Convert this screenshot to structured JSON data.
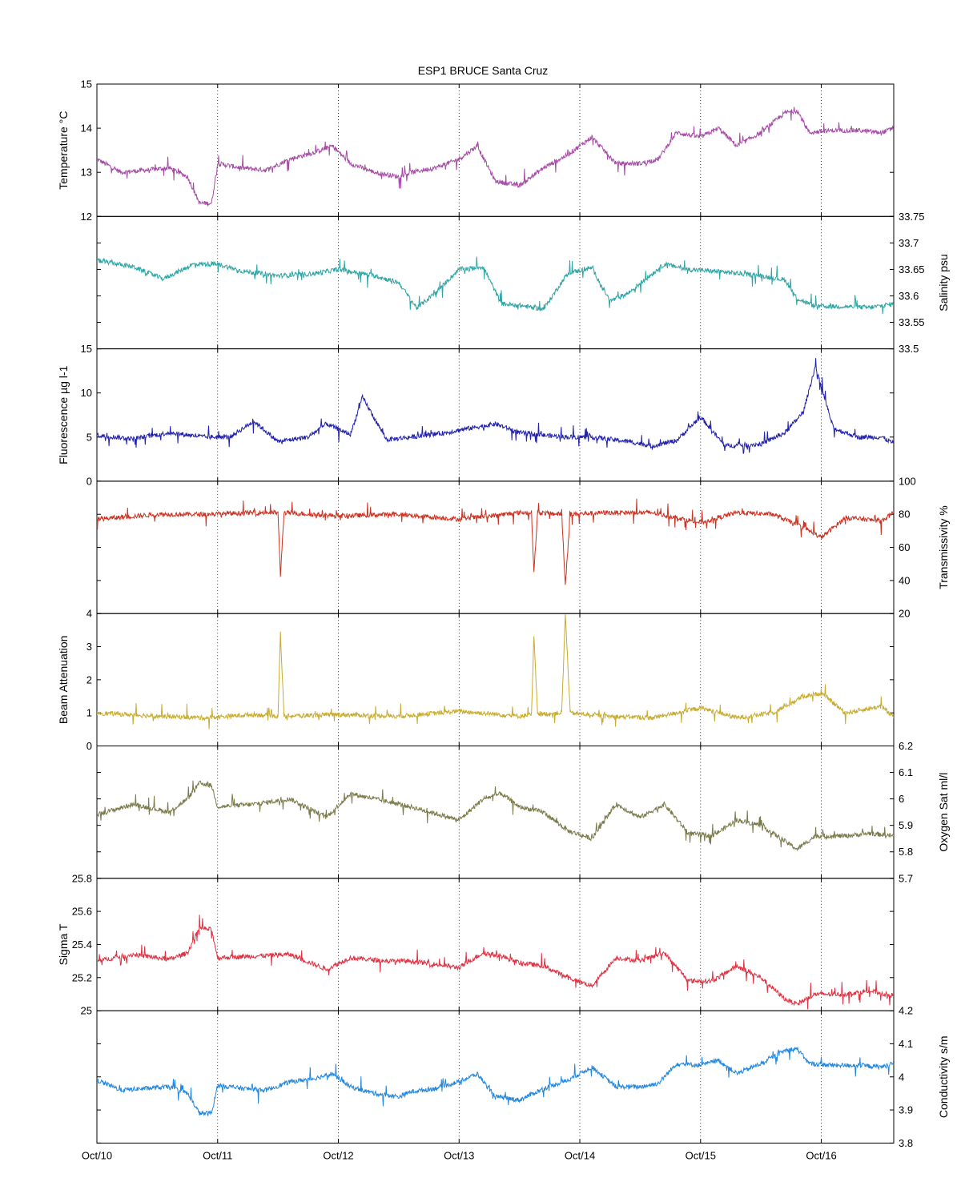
{
  "chart_data": {
    "type": "line",
    "title": "ESP1 BRUCE Santa Cruz",
    "x_ticks": [
      "Oct/10",
      "Oct/11",
      "Oct/12",
      "Oct/13",
      "Oct/14",
      "Oct/15",
      "Oct/16"
    ],
    "x_range_days": [
      10,
      16.6
    ],
    "grid": "vertical dotted lines at day ticks",
    "panels": [
      {
        "id": "temperature",
        "ylabel": "Temperature °C",
        "axis_side": "left",
        "ylim": [
          12,
          15
        ],
        "ticks": [
          12,
          13,
          14,
          15
        ],
        "tick_labels": [
          "12",
          "13",
          "14",
          "15"
        ],
        "color": "#a64ca6",
        "series": {
          "name": "Temperature",
          "x": [
            10.0,
            10.2,
            10.4,
            10.6,
            10.75,
            10.85,
            10.95,
            11.0,
            11.2,
            11.4,
            11.6,
            11.8,
            11.95,
            12.1,
            12.3,
            12.5,
            12.6,
            12.8,
            13.0,
            13.15,
            13.3,
            13.5,
            13.7,
            13.9,
            14.1,
            14.3,
            14.5,
            14.65,
            14.8,
            15.0,
            15.15,
            15.3,
            15.5,
            15.7,
            15.8,
            15.9,
            16.1,
            16.3,
            16.5,
            16.6
          ],
          "y": [
            13.3,
            13.0,
            13.05,
            13.1,
            12.9,
            12.3,
            12.3,
            13.2,
            13.1,
            13.05,
            13.3,
            13.45,
            13.6,
            13.2,
            13.0,
            12.9,
            13.0,
            13.1,
            13.3,
            13.6,
            12.8,
            12.7,
            13.1,
            13.4,
            13.8,
            13.2,
            13.2,
            13.3,
            13.9,
            13.8,
            14.0,
            13.6,
            13.9,
            14.35,
            14.4,
            13.9,
            13.95,
            13.95,
            13.9,
            14.0
          ]
        }
      },
      {
        "id": "salinity",
        "ylabel": "Salinity psu",
        "axis_side": "right",
        "ylim": [
          33.5,
          33.75
        ],
        "ticks": [
          33.5,
          33.55,
          33.6,
          33.65,
          33.7,
          33.75
        ],
        "tick_labels": [
          "33.5",
          "33.55",
          "33.6",
          "33.65",
          "33.7",
          "33.75"
        ],
        "color": "#2fa5a5",
        "series": {
          "name": "Salinity",
          "x": [
            10.0,
            10.3,
            10.55,
            10.8,
            11.0,
            11.2,
            11.5,
            11.8,
            12.0,
            12.3,
            12.5,
            12.65,
            12.8,
            13.0,
            13.2,
            13.35,
            13.5,
            13.7,
            13.9,
            14.1,
            14.25,
            14.4,
            14.7,
            14.9,
            15.2,
            15.5,
            15.7,
            15.8,
            15.95,
            16.2,
            16.4,
            16.6
          ],
          "y": [
            33.667,
            33.655,
            33.632,
            33.66,
            33.66,
            33.647,
            33.638,
            33.642,
            33.65,
            33.638,
            33.625,
            33.577,
            33.605,
            33.65,
            33.655,
            33.585,
            33.582,
            33.575,
            33.643,
            33.653,
            33.59,
            33.605,
            33.66,
            33.65,
            33.645,
            33.638,
            33.63,
            33.595,
            33.58,
            33.58,
            33.578,
            33.585
          ]
        }
      },
      {
        "id": "fluorescence",
        "ylabel": "Fluorescence µg l-1",
        "axis_side": "left",
        "ylim": [
          0,
          15
        ],
        "ticks": [
          0,
          5,
          10,
          15
        ],
        "tick_labels": [
          "0",
          "5",
          "10",
          "15"
        ],
        "color": "#2222aa",
        "series": {
          "name": "Fluorescence",
          "x": [
            10.0,
            10.3,
            10.6,
            10.9,
            11.1,
            11.3,
            11.5,
            11.75,
            11.9,
            12.1,
            12.2,
            12.4,
            12.6,
            12.9,
            13.0,
            13.3,
            13.5,
            13.7,
            13.9,
            14.1,
            14.4,
            14.6,
            14.8,
            15.0,
            15.2,
            15.5,
            15.7,
            15.85,
            15.95,
            16.1,
            16.3,
            16.5,
            16.6
          ],
          "y": [
            5.2,
            4.8,
            5.5,
            5.0,
            5.0,
            6.8,
            4.5,
            5.0,
            6.5,
            5.3,
            9.5,
            4.7,
            5.0,
            5.5,
            5.8,
            6.5,
            5.5,
            5.2,
            5.0,
            5.0,
            4.5,
            4.0,
            4.6,
            7.3,
            4.0,
            4.2,
            5.5,
            7.8,
            13.0,
            6.0,
            5.0,
            5.0,
            4.3
          ]
        }
      },
      {
        "id": "transmissivity",
        "ylabel": "Transmissivity %",
        "axis_side": "right",
        "ylim": [
          20,
          100
        ],
        "ticks": [
          20,
          40,
          60,
          80,
          100
        ],
        "tick_labels": [
          "20",
          "40",
          "60",
          "80",
          "100"
        ],
        "color": "#cc3322",
        "series": {
          "name": "Transmissivity",
          "x": [
            10.0,
            10.5,
            10.9,
            11.3,
            11.5,
            11.52,
            11.55,
            12.0,
            12.5,
            13.0,
            13.5,
            13.6,
            13.62,
            13.65,
            13.85,
            13.88,
            13.92,
            14.2,
            14.6,
            15.0,
            15.3,
            15.6,
            15.85,
            16.0,
            16.2,
            16.5,
            16.6
          ],
          "y": [
            77,
            80,
            80,
            81,
            81,
            43,
            81,
            79,
            80,
            77,
            81,
            81,
            45,
            81,
            80,
            37,
            80,
            81,
            81,
            75,
            81,
            80,
            72,
            66,
            78,
            76,
            81
          ]
        }
      },
      {
        "id": "beam_attenuation",
        "ylabel": "Beam Attenuation",
        "axis_side": "left",
        "ylim": [
          0,
          4
        ],
        "ticks": [
          0,
          1,
          2,
          3,
          4
        ],
        "tick_labels": [
          "0",
          "1",
          "2",
          "3",
          "4"
        ],
        "color": "#c8ac30",
        "series": {
          "name": "Beam Attenuation",
          "x": [
            10.0,
            10.5,
            10.9,
            11.3,
            11.5,
            11.52,
            11.55,
            12.0,
            12.5,
            13.0,
            13.5,
            13.6,
            13.62,
            13.65,
            13.85,
            13.88,
            13.92,
            14.2,
            14.6,
            15.0,
            15.3,
            15.6,
            15.85,
            16.0,
            16.2,
            16.5,
            16.6
          ],
          "y": [
            1.0,
            0.9,
            0.85,
            0.95,
            0.9,
            3.4,
            0.9,
            0.95,
            0.9,
            1.05,
            0.9,
            0.95,
            3.3,
            0.95,
            1.0,
            4.0,
            1.0,
            0.9,
            0.85,
            1.15,
            0.85,
            1.0,
            1.5,
            1.6,
            1.0,
            1.2,
            0.85
          ]
        }
      },
      {
        "id": "oxygen_sat",
        "ylabel": "Oxygen Sat ml/l",
        "axis_side": "right",
        "ylim": [
          5.7,
          6.2
        ],
        "ticks": [
          5.7,
          5.8,
          5.9,
          6.0,
          6.1,
          6.2
        ],
        "tick_labels": [
          "5.7",
          "5.8",
          "5.9",
          "6",
          "6.1",
          "6.2"
        ],
        "color": "#7a7a4a",
        "series": {
          "name": "Oxygen Sat",
          "x": [
            10.0,
            10.3,
            10.6,
            10.75,
            10.85,
            10.95,
            11.0,
            11.3,
            11.6,
            11.9,
            12.1,
            12.4,
            12.6,
            13.0,
            13.2,
            13.35,
            13.5,
            13.7,
            13.9,
            14.1,
            14.3,
            14.5,
            14.7,
            14.9,
            15.1,
            15.3,
            15.5,
            15.7,
            15.8,
            15.95,
            16.2,
            16.4,
            16.6
          ],
          "y": [
            5.94,
            5.98,
            5.95,
            6.0,
            6.06,
            6.05,
            5.97,
            5.98,
            6.0,
            5.93,
            6.02,
            5.99,
            5.97,
            5.92,
            6.0,
            6.02,
            5.97,
            5.95,
            5.88,
            5.85,
            5.98,
            5.93,
            5.98,
            5.87,
            5.86,
            5.92,
            5.9,
            5.84,
            5.81,
            5.86,
            5.86,
            5.87,
            5.86
          ]
        }
      },
      {
        "id": "sigma_t",
        "ylabel": "Sigma T",
        "axis_side": "left",
        "ylim": [
          25,
          25.8
        ],
        "ticks": [
          25,
          25.2,
          25.4,
          25.6,
          25.8
        ],
        "tick_labels": [
          "25",
          "25.2",
          "25.4",
          "25.6",
          "25.8"
        ],
        "color": "#dd3344",
        "series": {
          "name": "Sigma T",
          "x": [
            10.0,
            10.3,
            10.6,
            10.75,
            10.85,
            10.95,
            11.0,
            11.3,
            11.6,
            11.9,
            12.1,
            12.4,
            12.6,
            13.0,
            13.2,
            13.35,
            13.5,
            13.7,
            13.9,
            14.1,
            14.3,
            14.5,
            14.7,
            14.9,
            15.1,
            15.3,
            15.5,
            15.7,
            15.8,
            15.95,
            16.2,
            16.4,
            16.6
          ],
          "y": [
            25.3,
            25.34,
            25.31,
            25.35,
            25.5,
            25.49,
            25.32,
            25.33,
            25.34,
            25.25,
            25.32,
            25.3,
            25.3,
            25.26,
            25.35,
            25.33,
            25.29,
            25.27,
            25.2,
            25.15,
            25.32,
            25.3,
            25.35,
            25.18,
            25.18,
            25.27,
            25.2,
            25.07,
            25.04,
            25.1,
            25.1,
            25.12,
            25.09
          ]
        }
      },
      {
        "id": "conductivity",
        "ylabel": "Conductivity s/m",
        "axis_side": "right",
        "ylim": [
          3.8,
          4.2
        ],
        "ticks": [
          3.8,
          3.9,
          4.0,
          4.1,
          4.2
        ],
        "tick_labels": [
          "3.8",
          "3.9",
          "4",
          "4.1",
          "4.2"
        ],
        "color": "#2288dd",
        "series": {
          "name": "Conductivity",
          "x": [
            10.0,
            10.2,
            10.4,
            10.6,
            10.75,
            10.85,
            10.95,
            11.0,
            11.2,
            11.4,
            11.6,
            11.8,
            11.95,
            12.1,
            12.3,
            12.5,
            12.6,
            12.8,
            13.0,
            13.15,
            13.3,
            13.5,
            13.7,
            13.9,
            14.1,
            14.3,
            14.5,
            14.65,
            14.8,
            15.0,
            15.15,
            15.3,
            15.5,
            15.7,
            15.8,
            15.9,
            16.1,
            16.3,
            16.5,
            16.6
          ],
          "y": [
            3.99,
            3.96,
            3.965,
            3.97,
            3.95,
            3.89,
            3.89,
            3.975,
            3.965,
            3.96,
            3.985,
            3.995,
            4.01,
            3.97,
            3.95,
            3.94,
            3.955,
            3.965,
            3.985,
            4.01,
            3.94,
            3.93,
            3.965,
            3.99,
            4.03,
            3.97,
            3.97,
            3.98,
            4.04,
            4.035,
            4.05,
            4.01,
            4.04,
            4.08,
            4.085,
            4.04,
            4.035,
            4.035,
            4.03,
            4.04
          ]
        }
      }
    ]
  }
}
